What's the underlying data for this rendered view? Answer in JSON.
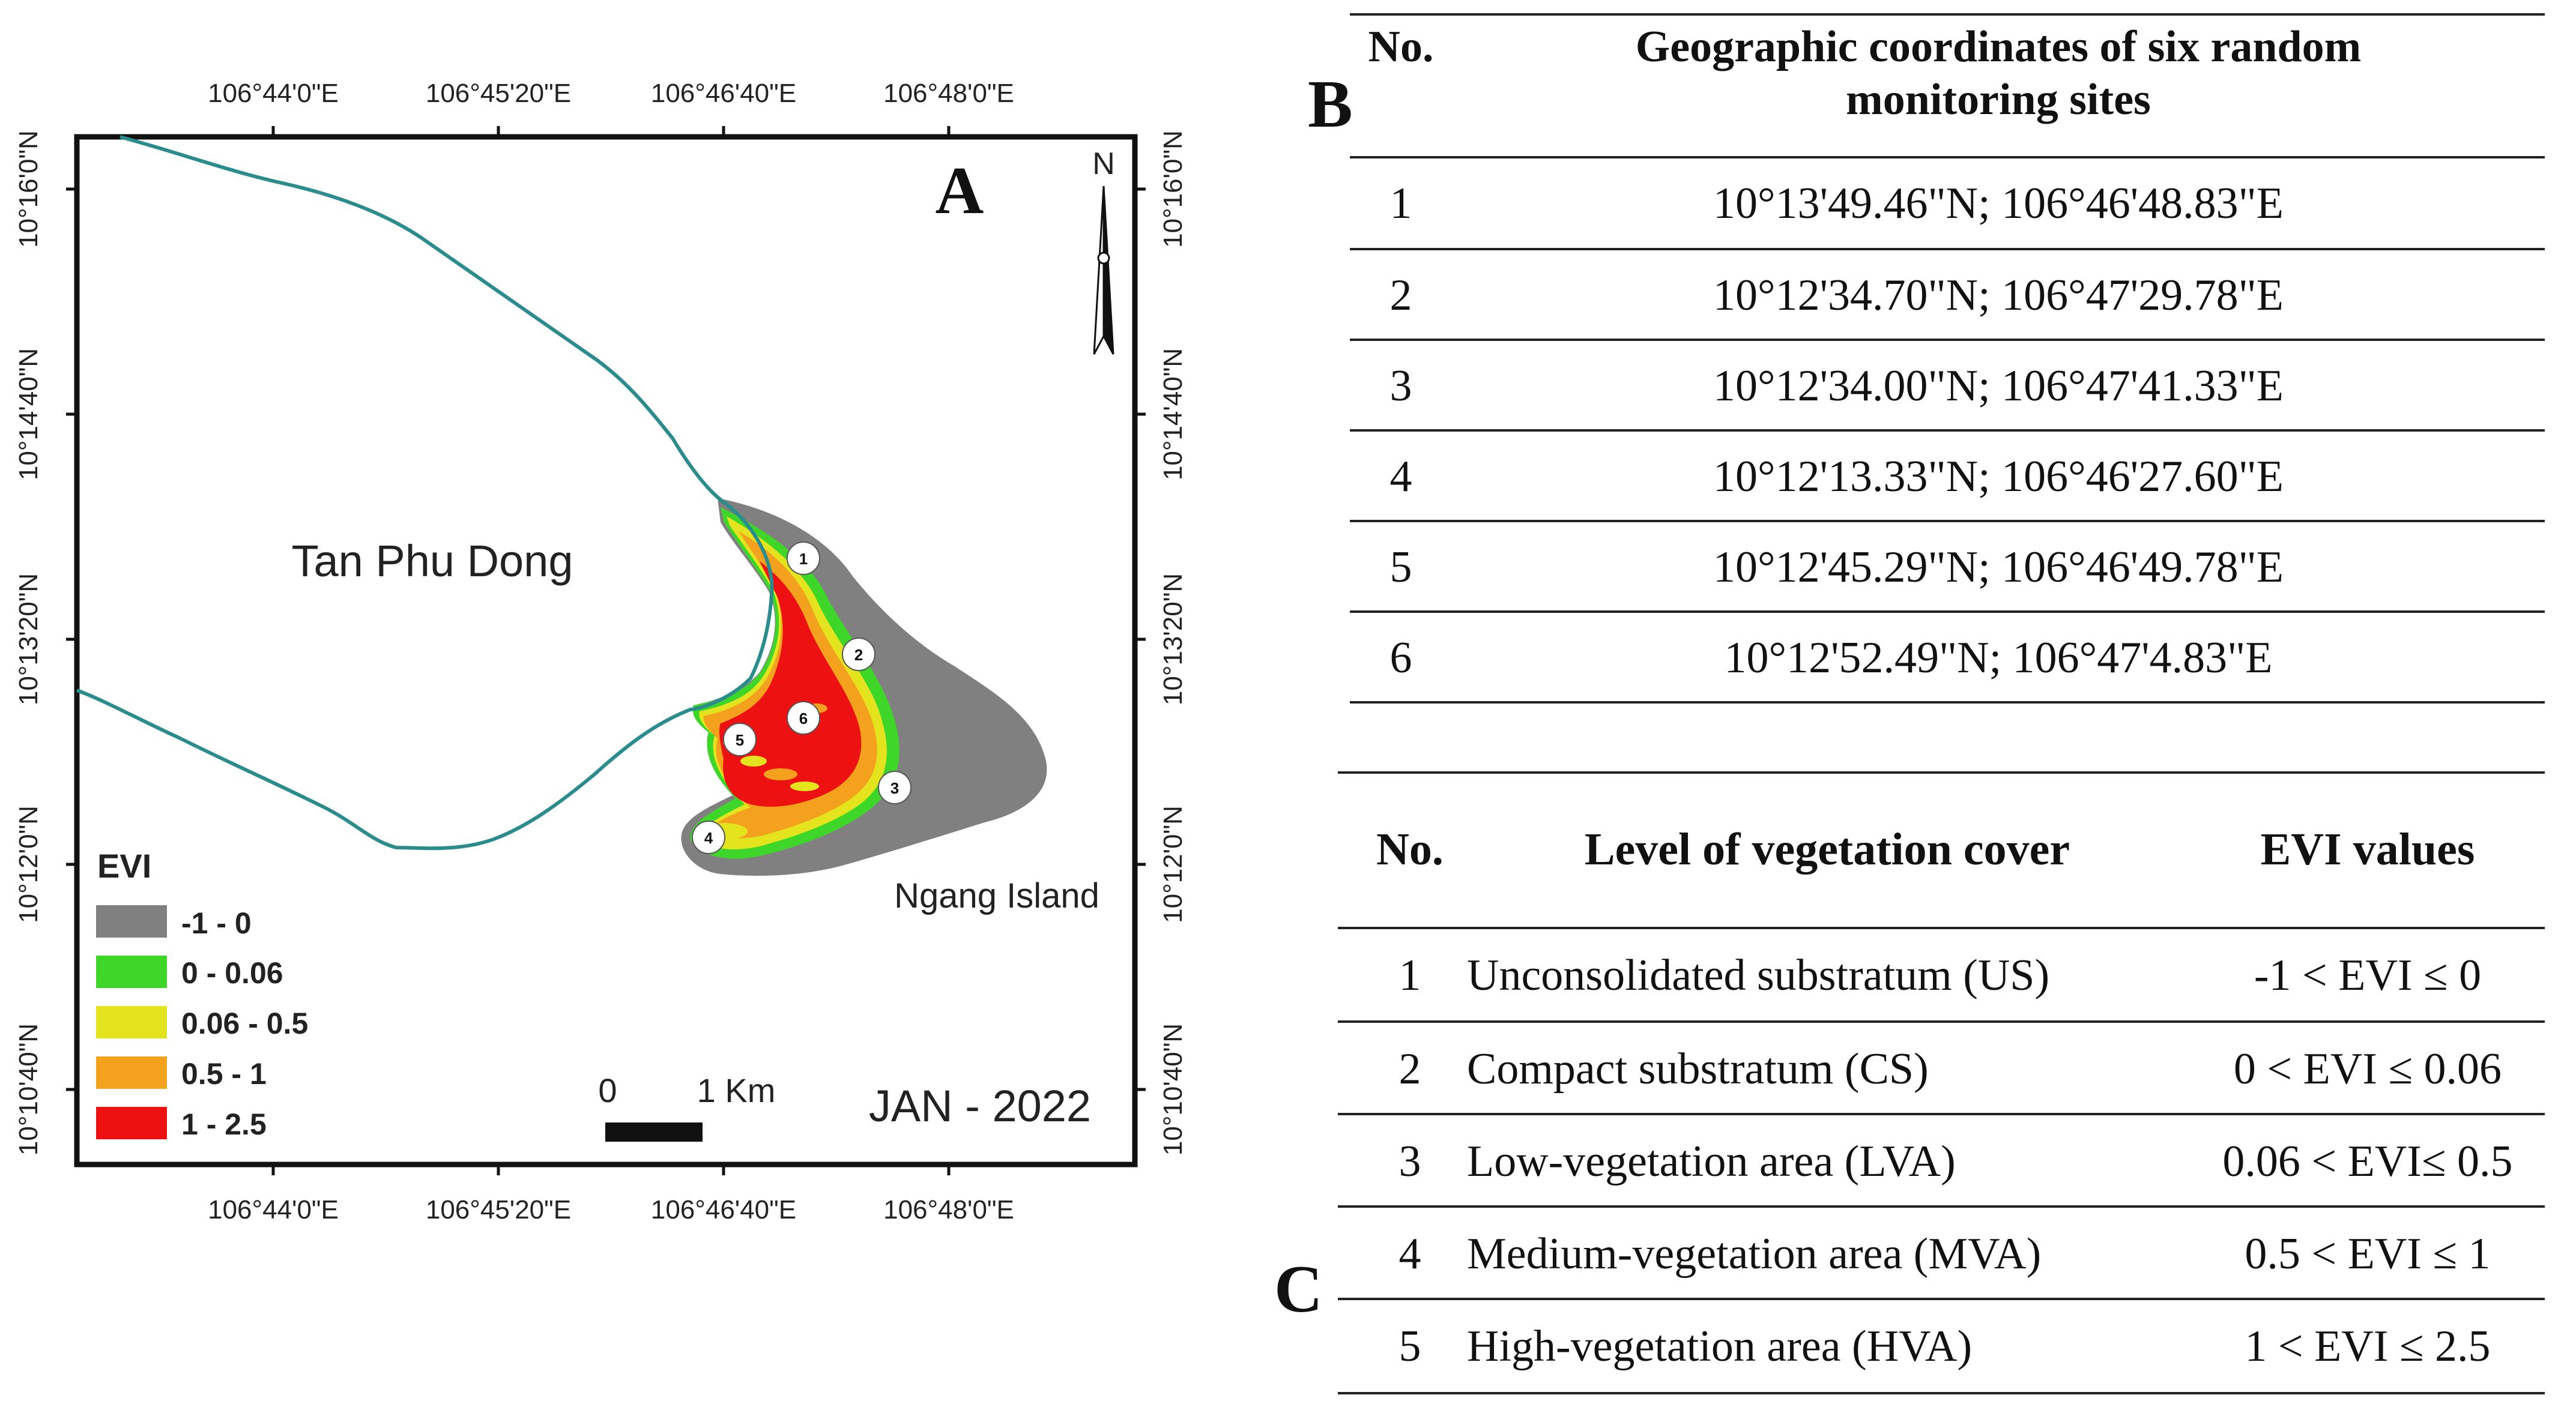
{
  "panel_a": {
    "letter": "A",
    "top_ticks": [
      "106°44'0\"E",
      "106°45'20\"E",
      "106°46'40\"E",
      "106°48'0\"E"
    ],
    "bottom_ticks": [
      "106°44'0\"E",
      "106°45'20\"E",
      "106°46'40\"E",
      "106°48'0\"E"
    ],
    "left_ticks": [
      "10°16'0\"N",
      "10°14'40\"N",
      "10°13'20\"N",
      "10°12'0\"N",
      "10°10'40\"N"
    ],
    "right_ticks": [
      "10°16'0\"N",
      "10°14'40\"N",
      "10°13'20\"N",
      "10°12'0\"N",
      "10°10'40\"N"
    ],
    "north_label": "N",
    "place_tan_phu_dong": "Tan Phu Dong",
    "place_ngang_island": "Ngang Island",
    "date_label": "JAN - 2022",
    "scale_bar": {
      "start": "0",
      "end": "1 Km"
    },
    "legend": {
      "title": "EVI",
      "items": [
        {
          "label": "-1 - 0",
          "color": "#808080"
        },
        {
          "label": "0 - 0.06",
          "color": "#3fd62a"
        },
        {
          "label": "0.06 - 0.5",
          "color": "#e3e41e"
        },
        {
          "label": "0.5 - 1",
          "color": "#f4a11d"
        },
        {
          "label": "1 - 2.5",
          "color": "#ee1111"
        }
      ]
    },
    "coast_color": "#2a8c8c",
    "sites": [
      "1",
      "2",
      "3",
      "4",
      "5",
      "6"
    ]
  },
  "panel_b": {
    "letter": "B",
    "header_no": "No.",
    "header_coords_line1": "Geographic coordinates of six random",
    "header_coords_line2": "monitoring sites",
    "rows": [
      {
        "no": "1",
        "coords": "10°13'49.46\"N; 106°46'48.83\"E"
      },
      {
        "no": "2",
        "coords": "10°12'34.70\"N; 106°47'29.78\"E"
      },
      {
        "no": "3",
        "coords": "10°12'34.00\"N; 106°47'41.33\"E"
      },
      {
        "no": "4",
        "coords": "10°12'13.33\"N; 106°46'27.60\"E"
      },
      {
        "no": "5",
        "coords": "10°12'45.29\"N; 106°46'49.78\"E"
      },
      {
        "no": "6",
        "coords": "10°12'52.49\"N; 106°47'4.83\"E"
      }
    ]
  },
  "panel_c": {
    "letter": "C",
    "header_no": "No.",
    "header_level": "Level of vegetation cover",
    "header_evi": "EVI values",
    "rows": [
      {
        "no": "1",
        "level": "Unconsolidated substratum (US)",
        "evi": "-1 < EVI ≤ 0"
      },
      {
        "no": "2",
        "level": "Compact substratum (CS)",
        "evi": "0 < EVI ≤ 0.06"
      },
      {
        "no": "3",
        "level": "Low-vegetation area (LVA)",
        "evi": "0.06 < EVI≤ 0.5"
      },
      {
        "no": "4",
        "level": "Medium-vegetation area (MVA)",
        "evi": "0.5 < EVI ≤ 1"
      },
      {
        "no": "5",
        "level": "High-vegetation area (HVA)",
        "evi": "1 < EVI ≤ 2.5"
      }
    ]
  }
}
